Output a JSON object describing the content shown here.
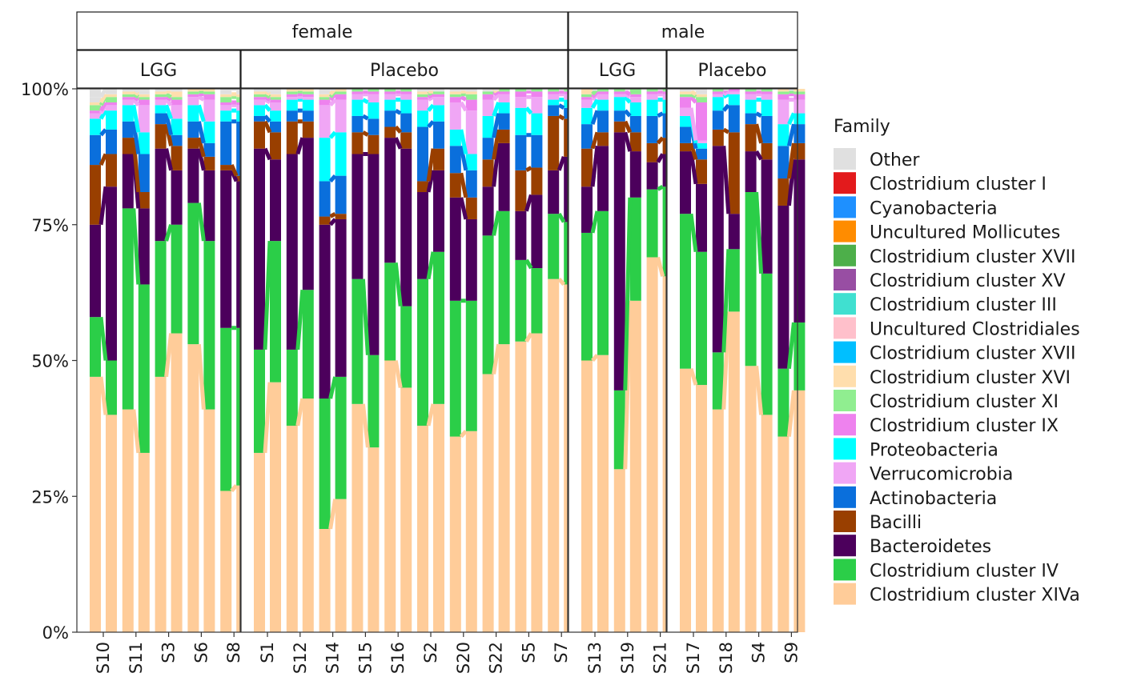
{
  "chart_data": {
    "type": "bar",
    "stacked": true,
    "percent_axis": true,
    "ylim": [
      0,
      1
    ],
    "yticks": [
      0,
      0.25,
      0.5,
      0.75,
      1
    ],
    "ytick_labels": [
      "0%",
      "25%",
      "50%",
      "75%",
      "100%"
    ],
    "grid": false,
    "legend": {
      "title": "Family",
      "position": "right"
    },
    "families": [
      {
        "name": "Other",
        "color": "#E0E0E0"
      },
      {
        "name": "Clostridium cluster I",
        "color": "#E31A1C"
      },
      {
        "name": "Cyanobacteria",
        "color": "#1E90FF"
      },
      {
        "name": "Uncultured Mollicutes",
        "color": "#FF8C00"
      },
      {
        "name": "Clostridium cluster XVII",
        "color": "#4DAF4A"
      },
      {
        "name": "Clostridium cluster XV",
        "color": "#984EA3"
      },
      {
        "name": "Clostridium cluster III",
        "color": "#40E0D0"
      },
      {
        "name": "Uncultured Clostridiales",
        "color": "#FFC0CB"
      },
      {
        "name": "Clostridium cluster XVII",
        "color": "#00BFFF"
      },
      {
        "name": "Clostridium cluster XVI",
        "color": "#FFDEAD"
      },
      {
        "name": "Clostridium cluster XI",
        "color": "#90EE90"
      },
      {
        "name": "Clostridium cluster IX",
        "color": "#EE82EE"
      },
      {
        "name": "Proteobacteria",
        "color": "#00FFFF"
      },
      {
        "name": "Verrucomicrobia",
        "color": "#F0A6F5"
      },
      {
        "name": "Actinobacteria",
        "color": "#0A6FDC"
      },
      {
        "name": "Bacilli",
        "color": "#993F00"
      },
      {
        "name": "Bacteroidetes",
        "color": "#4C005C"
      },
      {
        "name": "Clostridium cluster IV",
        "color": "#2BCE48"
      },
      {
        "name": "Clostridium cluster XIVa",
        "color": "#FFCC99"
      }
    ],
    "facets_top": [
      {
        "label": "female"
      },
      {
        "label": "male"
      }
    ],
    "panels": [
      {
        "sex": "female",
        "group": "LGG",
        "subjects": [
          {
            "id": "S10",
            "bars": [
              {
                "IV": 0.47,
                "XIVa": 0.11,
                "Bact": 0.17,
                "Bac": 0.11,
                "Act": 0.055,
                "Prot": 0.03,
                "Verr": 0.01,
                "IX": 0.005,
                "XI": 0.01,
                "XVI": 0.005,
                "Oth": 0.01
              },
              {
                "IV": 0.4,
                "XIVa": 0.1,
                "Bact": 0.32,
                "Bac": 0.06,
                "Act": 0.045,
                "Prot": 0.035,
                "Verr": 0.01,
                "IX": 0.005,
                "XI": 0.01,
                "XVI": 0.005,
                "Oth": 0.01
              }
            ]
          },
          {
            "id": "S11",
            "bars": [
              {
                "IV": 0.41,
                "XIVa": 0.37,
                "Bact": 0.1,
                "Bac": 0.03,
                "Act": 0.03,
                "Prot": 0.03,
                "Verr": 0.01,
                "IX": 0.005,
                "XI": 0.005,
                "XVI": 0.005,
                "Oth": 0.005
              },
              {
                "IV": 0.33,
                "XIVa": 0.31,
                "Bact": 0.14,
                "Bac": 0.03,
                "Act": 0.07,
                "Prot": 0.04,
                "Verr": 0.05,
                "IX": 0.01,
                "XI": 0.005,
                "XVI": 0.005,
                "Oth": 0.005
              }
            ]
          },
          {
            "id": "S3",
            "bars": [
              {
                "IV": 0.47,
                "XIVa": 0.25,
                "Bact": 0.17,
                "Bac": 0.045,
                "Act": 0.02,
                "Prot": 0.015,
                "Verr": 0.01,
                "IX": 0.005,
                "XI": 0.005,
                "XVI": 0.005,
                "Oth": 0.005
              },
              {
                "IV": 0.55,
                "XIVa": 0.2,
                "Bact": 0.1,
                "Bac": 0.045,
                "Act": 0.02,
                "Prot": 0.03,
                "Verr": 0.025,
                "IX": 0.01,
                "XI": 0.005,
                "XVI": 0.01,
                "Oth": 0.005
              }
            ]
          },
          {
            "id": "S6",
            "bars": [
              {
                "IV": 0.53,
                "XIVa": 0.26,
                "Bact": 0.1,
                "Bac": 0.02,
                "Act": 0.03,
                "Prot": 0.03,
                "Verr": 0.015,
                "IX": 0.005,
                "XI": 0.005,
                "XVI": 0.005,
                "Oth": 0.005
              },
              {
                "IV": 0.41,
                "XIVa": 0.31,
                "Bact": 0.13,
                "Bac": 0.025,
                "Act": 0.025,
                "Prot": 0.04,
                "Verr": 0.04,
                "IX": 0.01,
                "XI": 0.005,
                "XVI": 0.005,
                "Oth": 0.005
              }
            ]
          },
          {
            "id": "S8",
            "bars": [
              {
                "IV": 0.26,
                "XIVa": 0.3,
                "Bact": 0.29,
                "Bac": 0.01,
                "Act": 0.08,
                "Prot": 0.02,
                "Verr": 0.01,
                "IX": 0.005,
                "XI": 0.01,
                "XVI": 0.005,
                "Oth": 0.01
              },
              {
                "IV": 0.27,
                "XIVa": 0.29,
                "Bact": 0.27,
                "Bac": 0.01,
                "Act": 0.1,
                "Prot": 0.02,
                "Verr": 0.01,
                "IX": 0.005,
                "XI": 0.01,
                "XVI": 0.005,
                "Oth": 0.01
              }
            ]
          }
        ]
      },
      {
        "sex": "female",
        "group": "Placebo",
        "subjects": [
          {
            "id": "S1",
            "bars": [
              {
                "IV": 0.33,
                "XIVa": 0.19,
                "Bact": 0.37,
                "Bac": 0.05,
                "Act": 0.01,
                "Prot": 0.02,
                "Verr": 0.01,
                "IX": 0.005,
                "XI": 0.005,
                "XVI": 0.005,
                "Oth": 0.005
              },
              {
                "IV": 0.46,
                "XIVa": 0.26,
                "Bact": 0.15,
                "Bac": 0.05,
                "Act": 0.02,
                "Prot": 0.02,
                "Verr": 0.015,
                "IX": 0.005,
                "XI": 0.005,
                "XVI": 0.005,
                "Oth": 0.005
              }
            ]
          },
          {
            "id": "S12",
            "bars": [
              {
                "IV": 0.38,
                "XIVa": 0.14,
                "Bact": 0.36,
                "Bac": 0.06,
                "Act": 0.02,
                "Prot": 0.02,
                "Verr": 0.005,
                "IX": 0.005,
                "XI": 0.005,
                "XVI": 0.005,
                "Oth": 0.005
              },
              {
                "IV": 0.43,
                "XIVa": 0.2,
                "Bact": 0.28,
                "Bac": 0.03,
                "Act": 0.02,
                "Prot": 0.02,
                "Verr": 0.005,
                "IX": 0.005,
                "XI": 0.005,
                "XVI": 0.005,
                "Oth": 0.005
              }
            ]
          },
          {
            "id": "S14",
            "bars": [
              {
                "IV": 0.19,
                "XIVa": 0.24,
                "Bact": 0.32,
                "Bac": 0.015,
                "Act": 0.065,
                "Prot": 0.08,
                "Verr": 0.06,
                "IX": 0.01,
                "XI": 0.005,
                "XVI": 0.005,
                "Oth": 0.01
              },
              {
                "IV": 0.245,
                "XIVa": 0.225,
                "Bact": 0.29,
                "Bac": 0.01,
                "Act": 0.07,
                "Prot": 0.08,
                "Verr": 0.06,
                "IX": 0.01,
                "XI": 0.005,
                "XVI": 0.005,
                "Oth": 0.0
              }
            ]
          },
          {
            "id": "S15",
            "bars": [
              {
                "IV": 0.42,
                "XIVa": 0.23,
                "Bact": 0.23,
                "Bac": 0.04,
                "Act": 0.03,
                "Prot": 0.03,
                "Verr": 0.01,
                "IX": 0.005,
                "XI": 0.005,
                "XVI": 0.0,
                "Oth": 0.0
              },
              {
                "IV": 0.34,
                "XIVa": 0.17,
                "Bact": 0.37,
                "Bac": 0.035,
                "Act": 0.03,
                "Prot": 0.03,
                "Verr": 0.015,
                "IX": 0.005,
                "XI": 0.005,
                "XVI": 0.0,
                "Oth": 0.0
              }
            ]
          },
          {
            "id": "S16",
            "bars": [
              {
                "IV": 0.5,
                "XIVa": 0.18,
                "Bact": 0.23,
                "Bac": 0.02,
                "Act": 0.03,
                "Prot": 0.02,
                "Verr": 0.01,
                "IX": 0.005,
                "XI": 0.005,
                "XVI": 0.0,
                "Oth": 0.0
              },
              {
                "IV": 0.45,
                "XIVa": 0.15,
                "Bact": 0.29,
                "Bac": 0.03,
                "Act": 0.035,
                "Prot": 0.025,
                "Verr": 0.01,
                "IX": 0.005,
                "XI": 0.005,
                "XVI": 0.0,
                "Oth": 0.0
              }
            ]
          },
          {
            "id": "S2",
            "bars": [
              {
                "IV": 0.38,
                "XIVa": 0.27,
                "Bact": 0.16,
                "Bac": 0.02,
                "Act": 0.1,
                "Prot": 0.03,
                "Verr": 0.02,
                "IX": 0.005,
                "XI": 0.005,
                "XVI": 0.005,
                "Oth": 0.005
              },
              {
                "IV": 0.42,
                "XIVa": 0.28,
                "Bact": 0.15,
                "Bac": 0.04,
                "Act": 0.05,
                "Prot": 0.03,
                "Verr": 0.015,
                "IX": 0.005,
                "XI": 0.005,
                "XVI": 0.0,
                "Oth": 0.005
              }
            ]
          },
          {
            "id": "S20",
            "bars": [
              {
                "IV": 0.36,
                "XIVa": 0.25,
                "Bact": 0.19,
                "Bac": 0.045,
                "Act": 0.05,
                "Prot": 0.03,
                "Verr": 0.05,
                "IX": 0.01,
                "XI": 0.005,
                "XVI": 0.005,
                "Oth": 0.005
              },
              {
                "IV": 0.37,
                "XIVa": 0.24,
                "Bact": 0.15,
                "Bac": 0.04,
                "Act": 0.05,
                "Prot": 0.03,
                "Verr": 0.08,
                "IX": 0.02,
                "XI": 0.01,
                "XVI": 0.005,
                "Oth": 0.005
              }
            ]
          },
          {
            "id": "S22",
            "bars": [
              {
                "IV": 0.475,
                "XIVa": 0.255,
                "Bact": 0.09,
                "Bac": 0.05,
                "Act": 0.04,
                "Prot": 0.04,
                "Verr": 0.03,
                "IX": 0.01,
                "XI": 0.005,
                "XVI": 0.0,
                "Oth": 0.005
              },
              {
                "IV": 0.53,
                "XIVa": 0.245,
                "Bact": 0.125,
                "Bac": 0.025,
                "Act": 0.03,
                "Prot": 0.02,
                "Verr": 0.015,
                "IX": 0.005,
                "XI": 0.005,
                "XVI": 0.0,
                "Oth": 0.0
              }
            ]
          },
          {
            "id": "S5",
            "bars": [
              {
                "IV": 0.535,
                "XIVa": 0.15,
                "Bact": 0.09,
                "Bac": 0.075,
                "Act": 0.065,
                "Prot": 0.05,
                "Verr": 0.02,
                "IX": 0.01,
                "XI": 0.005,
                "XVI": 0.0,
                "Oth": 0.0
              },
              {
                "IV": 0.55,
                "XIVa": 0.12,
                "Bact": 0.135,
                "Bac": 0.05,
                "Act": 0.06,
                "Prot": 0.04,
                "Verr": 0.03,
                "IX": 0.01,
                "XI": 0.005,
                "XVI": 0.0,
                "Oth": 0.0
              }
            ]
          },
          {
            "id": "S7",
            "bars": [
              {
                "IV": 0.65,
                "XIVa": 0.12,
                "Bact": 0.08,
                "Bac": 0.1,
                "Act": 0.02,
                "Prot": 0.01,
                "Verr": 0.01,
                "IX": 0.005,
                "XI": 0.005,
                "XVI": 0.0,
                "Oth": 0.0
              },
              {
                "IV": 0.64,
                "XIVa": 0.115,
                "Bact": 0.12,
                "Bac": 0.07,
                "Act": 0.02,
                "Prot": 0.015,
                "Verr": 0.01,
                "IX": 0.005,
                "XI": 0.005,
                "XVI": 0.0,
                "Oth": 0.0
              }
            ]
          }
        ]
      },
      {
        "sex": "male",
        "group": "LGG",
        "subjects": [
          {
            "id": "S13",
            "bars": [
              {
                "IV": 0.5,
                "XIVa": 0.235,
                "Bact": 0.085,
                "Bac": 0.07,
                "Act": 0.045,
                "Prot": 0.03,
                "Verr": 0.015,
                "IX": 0.005,
                "XI": 0.005,
                "XVI": 0.01,
                "Oth": 0.0
              },
              {
                "IV": 0.51,
                "XIVa": 0.265,
                "Bact": 0.12,
                "Bac": 0.025,
                "Act": 0.04,
                "Prot": 0.02,
                "Verr": 0.01,
                "IX": 0.005,
                "XI": 0.005,
                "XVI": 0.0,
                "Oth": 0.0
              }
            ]
          },
          {
            "id": "S19",
            "bars": [
              {
                "IV": 0.3,
                "XIVa": 0.145,
                "Bact": 0.475,
                "Bac": 0.02,
                "Act": 0.02,
                "Prot": 0.025,
                "Verr": 0.005,
                "IX": 0.005,
                "XI": 0.005,
                "XVI": 0.0,
                "Oth": 0.0
              },
              {
                "IV": 0.61,
                "XIVa": 0.19,
                "Bact": 0.085,
                "Bac": 0.035,
                "Act": 0.03,
                "Prot": 0.025,
                "Verr": 0.01,
                "IX": 0.005,
                "XI": 0.01,
                "XVI": 0.0,
                "Oth": 0.0
              }
            ]
          },
          {
            "id": "S21",
            "bars": [
              {
                "IV": 0.69,
                "XIVa": 0.125,
                "Bact": 0.05,
                "Bac": 0.035,
                "Act": 0.05,
                "Prot": 0.03,
                "Verr": 0.01,
                "IX": 0.005,
                "XI": 0.005,
                "XVI": 0.0,
                "Oth": 0.0
              },
              {
                "IV": 0.655,
                "XIVa": 0.165,
                "Bact": 0.06,
                "Bac": 0.03,
                "Act": 0.045,
                "Prot": 0.025,
                "Verr": 0.01,
                "IX": 0.005,
                "XI": 0.005,
                "XVI": 0.0,
                "Oth": 0.0
              }
            ]
          }
        ]
      },
      {
        "sex": "male",
        "group": "Placebo",
        "subjects": [
          {
            "id": "S17",
            "bars": [
              {
                "IV": 0.485,
                "XIVa": 0.285,
                "Bact": 0.115,
                "Bac": 0.015,
                "Act": 0.03,
                "Prot": 0.02,
                "Verr": 0.015,
                "IX": 0.02,
                "XI": 0.005,
                "XVI": 0.005,
                "Oth": 0.005
              },
              {
                "IV": 0.455,
                "XIVa": 0.245,
                "Bact": 0.125,
                "Bac": 0.045,
                "Act": 0.02,
                "Prot": 0.01,
                "Verr": 0.005,
                "IX": 0.07,
                "XI": 0.01,
                "XVI": 0.005,
                "Oth": 0.01
              }
            ]
          },
          {
            "id": "S18",
            "bars": [
              {
                "IV": 0.41,
                "XIVa": 0.105,
                "Bact": 0.38,
                "Bac": 0.03,
                "Act": 0.035,
                "Prot": 0.025,
                "Verr": 0.005,
                "IX": 0.005,
                "XI": 0.005,
                "XVI": 0.0,
                "Oth": 0.0
              },
              {
                "IV": 0.59,
                "XIVa": 0.115,
                "Bact": 0.065,
                "Bac": 0.15,
                "Act": 0.05,
                "Prot": 0.02,
                "Verr": 0.005,
                "IX": 0.005,
                "XI": 0.0,
                "XVI": 0.0,
                "Oth": 0.0
              }
            ]
          },
          {
            "id": "S4",
            "bars": [
              {
                "IV": 0.49,
                "XIVa": 0.32,
                "Bact": 0.075,
                "Bac": 0.05,
                "Act": 0.02,
                "Prot": 0.025,
                "Verr": 0.01,
                "IX": 0.005,
                "XI": 0.005,
                "XVI": 0.0,
                "Oth": 0.0
              },
              {
                "IV": 0.4,
                "XIVa": 0.26,
                "Bact": 0.21,
                "Bac": 0.03,
                "Act": 0.05,
                "Prot": 0.03,
                "Verr": 0.01,
                "IX": 0.005,
                "XI": 0.005,
                "XVI": 0.0,
                "Oth": 0.0
              }
            ]
          },
          {
            "id": "S9",
            "bars": [
              {
                "IV": 0.36,
                "XIVa": 0.125,
                "Bact": 0.3,
                "Bac": 0.05,
                "Act": 0.06,
                "Prot": 0.04,
                "Verr": 0.045,
                "IX": 0.01,
                "XI": 0.005,
                "XVI": 0.005,
                "Oth": 0.0
              },
              {
                "IV": 0.445,
                "XIVa": 0.125,
                "Bact": 0.3,
                "Bac": 0.03,
                "Act": 0.035,
                "Prot": 0.02,
                "Verr": 0.025,
                "IX": 0.01,
                "XI": 0.005,
                "XVI": 0.005,
                "Oth": 0.0
              }
            ]
          }
        ]
      }
    ]
  }
}
